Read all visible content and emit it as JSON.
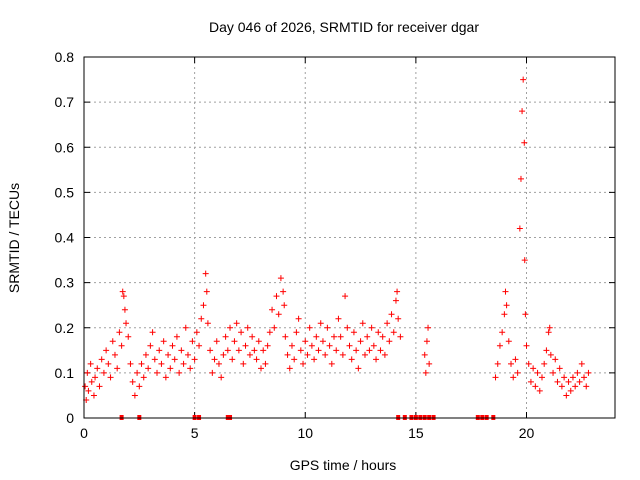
{
  "chart_data": {
    "type": "scatter",
    "title": "Day 046 of 2026, SRMTID for receiver dgar",
    "xlabel": "GPS time / hours",
    "ylabel": "SRMTID / TECUs",
    "xlim": [
      0,
      24
    ],
    "ylim": [
      0,
      0.8
    ],
    "x_ticks": [
      0,
      5,
      10,
      15,
      20
    ],
    "x_tick_labels": [
      "0",
      "5",
      "10",
      "15",
      "20"
    ],
    "y_ticks": [
      0,
      0.1,
      0.2,
      0.3,
      0.4,
      0.5,
      0.6,
      0.7,
      0.8
    ],
    "y_tick_labels": [
      "0",
      "0.1",
      "0.2",
      "0.3",
      "0.4",
      "0.5",
      "0.6",
      "0.7",
      "0.8"
    ],
    "grid": true,
    "marker": "+",
    "series": [
      {
        "name": "SRMTID",
        "color": "#ff0000",
        "points": [
          [
            0.05,
            0.07
          ],
          [
            0.1,
            0.04
          ],
          [
            0.15,
            0.1
          ],
          [
            0.2,
            0.06
          ],
          [
            0.3,
            0.12
          ],
          [
            0.35,
            0.08
          ],
          [
            0.45,
            0.05
          ],
          [
            0.5,
            0.09
          ],
          [
            0.6,
            0.11
          ],
          [
            0.7,
            0.07
          ],
          [
            0.8,
            0.13
          ],
          [
            0.9,
            0.1
          ],
          [
            1.0,
            0.15
          ],
          [
            1.1,
            0.12
          ],
          [
            1.2,
            0.09
          ],
          [
            1.3,
            0.17
          ],
          [
            1.4,
            0.14
          ],
          [
            1.5,
            0.11
          ],
          [
            1.6,
            0.19
          ],
          [
            1.7,
            0.16
          ],
          [
            1.75,
            0.28
          ],
          [
            1.8,
            0.27
          ],
          [
            1.85,
            0.24
          ],
          [
            1.9,
            0.21
          ],
          [
            2.0,
            0.18
          ],
          [
            2.1,
            0.12
          ],
          [
            2.2,
            0.08
          ],
          [
            2.3,
            0.05
          ],
          [
            2.4,
            0.1
          ],
          [
            2.5,
            0.07
          ],
          [
            2.6,
            0.12
          ],
          [
            2.7,
            0.09
          ],
          [
            2.8,
            0.14
          ],
          [
            2.9,
            0.11
          ],
          [
            3.0,
            0.16
          ],
          [
            3.1,
            0.19
          ],
          [
            3.2,
            0.13
          ],
          [
            3.3,
            0.1
          ],
          [
            3.4,
            0.15
          ],
          [
            3.5,
            0.12
          ],
          [
            3.6,
            0.17
          ],
          [
            3.7,
            0.09
          ],
          [
            3.8,
            0.14
          ],
          [
            3.9,
            0.11
          ],
          [
            4.0,
            0.16
          ],
          [
            4.1,
            0.13
          ],
          [
            4.2,
            0.18
          ],
          [
            4.3,
            0.1
          ],
          [
            4.4,
            0.15
          ],
          [
            4.5,
            0.12
          ],
          [
            4.6,
            0.2
          ],
          [
            4.7,
            0.14
          ],
          [
            4.8,
            0.11
          ],
          [
            4.9,
            0.17
          ],
          [
            5.0,
            0.13
          ],
          [
            5.1,
            0.19
          ],
          [
            5.2,
            0.16
          ],
          [
            5.3,
            0.22
          ],
          [
            5.4,
            0.25
          ],
          [
            5.5,
            0.32
          ],
          [
            5.55,
            0.28
          ],
          [
            5.6,
            0.21
          ],
          [
            5.7,
            0.15
          ],
          [
            5.8,
            0.1
          ],
          [
            5.9,
            0.13
          ],
          [
            6.0,
            0.17
          ],
          [
            6.1,
            0.12
          ],
          [
            6.2,
            0.09
          ],
          [
            6.3,
            0.14
          ],
          [
            6.4,
            0.18
          ],
          [
            6.5,
            0.15
          ],
          [
            6.6,
            0.2
          ],
          [
            6.7,
            0.13
          ],
          [
            6.8,
            0.17
          ],
          [
            6.9,
            0.21
          ],
          [
            7.0,
            0.15
          ],
          [
            7.1,
            0.19
          ],
          [
            7.2,
            0.12
          ],
          [
            7.3,
            0.16
          ],
          [
            7.4,
            0.2
          ],
          [
            7.5,
            0.14
          ],
          [
            7.6,
            0.18
          ],
          [
            7.7,
            0.15
          ],
          [
            7.8,
            0.13
          ],
          [
            7.9,
            0.17
          ],
          [
            8.0,
            0.11
          ],
          [
            8.1,
            0.15
          ],
          [
            8.2,
            0.12
          ],
          [
            8.3,
            0.16
          ],
          [
            8.4,
            0.19
          ],
          [
            8.5,
            0.24
          ],
          [
            8.6,
            0.2
          ],
          [
            8.7,
            0.27
          ],
          [
            8.8,
            0.23
          ],
          [
            8.9,
            0.31
          ],
          [
            9.0,
            0.28
          ],
          [
            9.05,
            0.25
          ],
          [
            9.1,
            0.18
          ],
          [
            9.2,
            0.14
          ],
          [
            9.3,
            0.11
          ],
          [
            9.4,
            0.16
          ],
          [
            9.5,
            0.13
          ],
          [
            9.6,
            0.19
          ],
          [
            9.7,
            0.22
          ],
          [
            9.8,
            0.15
          ],
          [
            9.9,
            0.12
          ],
          [
            10.0,
            0.17
          ],
          [
            10.1,
            0.14
          ],
          [
            10.2,
            0.2
          ],
          [
            10.3,
            0.16
          ],
          [
            10.4,
            0.13
          ],
          [
            10.5,
            0.18
          ],
          [
            10.6,
            0.15
          ],
          [
            10.7,
            0.21
          ],
          [
            10.8,
            0.17
          ],
          [
            10.9,
            0.14
          ],
          [
            11.0,
            0.2
          ],
          [
            11.1,
            0.16
          ],
          [
            11.2,
            0.12
          ],
          [
            11.3,
            0.18
          ],
          [
            11.4,
            0.15
          ],
          [
            11.5,
            0.22
          ],
          [
            11.6,
            0.18
          ],
          [
            11.7,
            0.14
          ],
          [
            11.8,
            0.27
          ],
          [
            11.9,
            0.2
          ],
          [
            12.0,
            0.16
          ],
          [
            12.1,
            0.13
          ],
          [
            12.2,
            0.19
          ],
          [
            12.3,
            0.15
          ],
          [
            12.4,
            0.11
          ],
          [
            12.5,
            0.17
          ],
          [
            12.6,
            0.21
          ],
          [
            12.7,
            0.14
          ],
          [
            12.8,
            0.18
          ],
          [
            12.9,
            0.15
          ],
          [
            13.0,
            0.2
          ],
          [
            13.1,
            0.16
          ],
          [
            13.2,
            0.13
          ],
          [
            13.3,
            0.19
          ],
          [
            13.4,
            0.15
          ],
          [
            13.5,
            0.18
          ],
          [
            13.6,
            0.14
          ],
          [
            13.7,
            0.21
          ],
          [
            13.8,
            0.17
          ],
          [
            13.9,
            0.23
          ],
          [
            14.0,
            0.19
          ],
          [
            14.1,
            0.26
          ],
          [
            14.15,
            0.28
          ],
          [
            14.2,
            0.22
          ],
          [
            14.3,
            0.18
          ],
          [
            15.4,
            0.14
          ],
          [
            15.45,
            0.1
          ],
          [
            15.5,
            0.17
          ],
          [
            15.55,
            0.2
          ],
          [
            15.6,
            0.12
          ],
          [
            18.6,
            0.09
          ],
          [
            18.7,
            0.12
          ],
          [
            18.8,
            0.16
          ],
          [
            18.9,
            0.19
          ],
          [
            19.0,
            0.23
          ],
          [
            19.05,
            0.28
          ],
          [
            19.1,
            0.25
          ],
          [
            19.2,
            0.17
          ],
          [
            19.3,
            0.12
          ],
          [
            19.4,
            0.09
          ],
          [
            19.5,
            0.13
          ],
          [
            19.6,
            0.1
          ],
          [
            19.7,
            0.42
          ],
          [
            19.75,
            0.53
          ],
          [
            19.8,
            0.68
          ],
          [
            19.85,
            0.75
          ],
          [
            19.9,
            0.61
          ],
          [
            19.92,
            0.35
          ],
          [
            19.95,
            0.23
          ],
          [
            20.0,
            0.16
          ],
          [
            20.1,
            0.12
          ],
          [
            20.2,
            0.08
          ],
          [
            20.3,
            0.11
          ],
          [
            20.4,
            0.07
          ],
          [
            20.5,
            0.1
          ],
          [
            20.6,
            0.06
          ],
          [
            20.7,
            0.09
          ],
          [
            20.8,
            0.12
          ],
          [
            20.9,
            0.15
          ],
          [
            21.0,
            0.19
          ],
          [
            21.05,
            0.2
          ],
          [
            21.1,
            0.14
          ],
          [
            21.2,
            0.1
          ],
          [
            21.3,
            0.13
          ],
          [
            21.4,
            0.08
          ],
          [
            21.5,
            0.11
          ],
          [
            21.6,
            0.07
          ],
          [
            21.7,
            0.09
          ],
          [
            21.8,
            0.05
          ],
          [
            21.9,
            0.08
          ],
          [
            22.0,
            0.06
          ],
          [
            22.1,
            0.09
          ],
          [
            22.2,
            0.07
          ],
          [
            22.3,
            0.1
          ],
          [
            22.4,
            0.08
          ],
          [
            22.5,
            0.12
          ],
          [
            22.6,
            0.09
          ],
          [
            22.7,
            0.07
          ],
          [
            22.8,
            0.1
          ]
        ],
        "zero_points": [
          1.7,
          2.5,
          5.0,
          5.2,
          6.5,
          6.6,
          14.2,
          14.5,
          14.8,
          15.0,
          15.2,
          15.4,
          15.6,
          15.8,
          17.8,
          18.0,
          18.2,
          18.5
        ]
      }
    ]
  }
}
